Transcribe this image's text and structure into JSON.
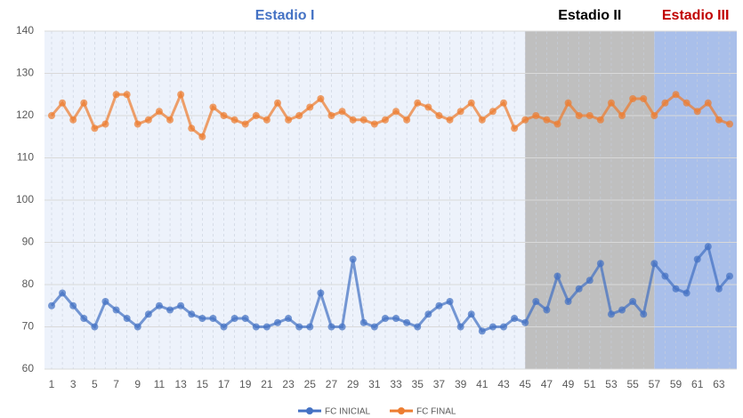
{
  "chart_data": {
    "type": "line",
    "categories": [
      1,
      null,
      3,
      null,
      5,
      null,
      7,
      null,
      9,
      null,
      11,
      null,
      13,
      null,
      15,
      null,
      17,
      null,
      19,
      null,
      21,
      null,
      23,
      null,
      25,
      null,
      27,
      null,
      29,
      null,
      31,
      null,
      33,
      null,
      35,
      null,
      37,
      null,
      39,
      null,
      41,
      null,
      43,
      null,
      45,
      null,
      47,
      null,
      49,
      null,
      51,
      null,
      53,
      null,
      55,
      null,
      57,
      null,
      59,
      null,
      61,
      null,
      63,
      null
    ],
    "series": [
      {
        "name": "FC INICIAL",
        "color": "#4472c4",
        "values": [
          75,
          78,
          75,
          72,
          70,
          76,
          74,
          72,
          70,
          73,
          75,
          74,
          75,
          73,
          72,
          72,
          70,
          72,
          72,
          70,
          70,
          71,
          72,
          70,
          70,
          78,
          70,
          70,
          86,
          71,
          70,
          72,
          72,
          71,
          70,
          73,
          75,
          76,
          70,
          73,
          69,
          70,
          70,
          72,
          71,
          76,
          74,
          82,
          76,
          79,
          81,
          85,
          73,
          74,
          76,
          73,
          85,
          82,
          79,
          78,
          86,
          89,
          79,
          82
        ]
      },
      {
        "name": "FC FINAL",
        "color": "#ed7d31",
        "values": [
          120,
          123,
          119,
          123,
          117,
          118,
          125,
          125,
          118,
          119,
          121,
          119,
          125,
          117,
          115,
          122,
          120,
          119,
          118,
          120,
          119,
          123,
          119,
          120,
          122,
          124,
          120,
          121,
          119,
          119,
          118,
          119,
          121,
          119,
          123,
          122,
          120,
          119,
          121,
          123,
          119,
          121,
          123,
          117,
          119,
          120,
          119,
          118,
          123,
          120,
          120,
          119,
          123,
          120,
          124,
          124,
          120,
          123,
          125,
          123,
          121,
          123,
          119,
          118
        ]
      }
    ],
    "regions": [
      {
        "label": "Estadio I",
        "from": 1,
        "to": 45,
        "color": "#edf2fb",
        "label_color": "#4472c4"
      },
      {
        "label": "Estadio II",
        "from": 45,
        "to": 57,
        "color": "#bfbfbf",
        "label_color": "#000000"
      },
      {
        "label": "Estadio III",
        "from": 57,
        "to": 64,
        "color": "#a9bfea",
        "label_color": "#c00000"
      }
    ],
    "ylim": [
      60,
      140
    ],
    "yticks": [
      60,
      70,
      80,
      90,
      100,
      110,
      120,
      130,
      140
    ],
    "grid": true
  }
}
